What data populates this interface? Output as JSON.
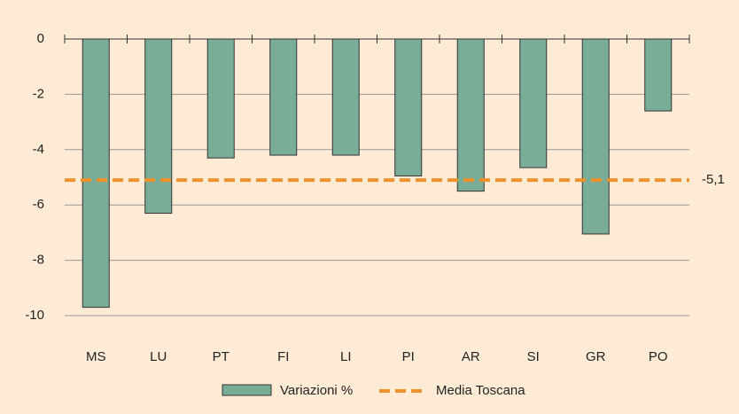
{
  "chart_data": {
    "type": "bar",
    "categories": [
      "MS",
      "LU",
      "PT",
      "FI",
      "LI",
      "PI",
      "AR",
      "SI",
      "GR",
      "PO"
    ],
    "series": [
      {
        "name": "Variazioni %",
        "color": "#7aad97",
        "values": [
          -9.7,
          -6.3,
          -4.3,
          -4.2,
          -4.2,
          -4.95,
          -5.5,
          -4.65,
          -7.05,
          -2.6
        ]
      }
    ],
    "reference": {
      "name": "Media Toscana",
      "value": -5.1,
      "label": "-5,1",
      "color": "#f0922b"
    },
    "ylim": [
      -10,
      0
    ],
    "yticks": [
      0,
      -2,
      -4,
      -6,
      -8,
      -10
    ],
    "grid": true
  }
}
